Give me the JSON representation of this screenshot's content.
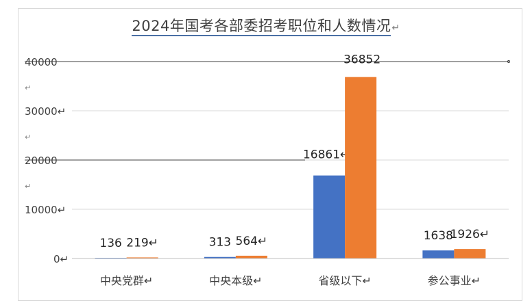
{
  "chart_data": {
    "type": "bar",
    "title": "2024年国考各部委招考职位和人数情况",
    "title_mark": "↵",
    "categories": [
      "中央党群",
      "中央本级",
      "省级以下",
      "参公事业"
    ],
    "series": [
      {
        "values": [
          136,
          313,
          16861,
          1638
        ]
      },
      {
        "values": [
          219,
          564,
          36852,
          1926
        ]
      }
    ],
    "data_labels": [
      [
        "136",
        "219↵"
      ],
      [
        "313",
        "564↵"
      ],
      [
        "16861↵",
        "36852"
      ],
      [
        "1638",
        "1926↵"
      ]
    ],
    "ylim": [
      0,
      40000
    ],
    "yticks": [
      {
        "value": 0,
        "label": "0↵"
      },
      {
        "value": 10000,
        "label": "10000↵"
      },
      {
        "value": 20000,
        "label": "20000"
      },
      {
        "value": 30000,
        "label": "30000↵"
      },
      {
        "value": 40000,
        "label": "40000"
      }
    ],
    "ytick_marks": [
      "↵",
      "↵",
      "↵"
    ],
    "category_marks": [
      "↵",
      "↵",
      "↵",
      "↵"
    ],
    "grid": true,
    "legend": "none",
    "colors": [
      "#4472c4",
      "#ed7d31"
    ]
  }
}
